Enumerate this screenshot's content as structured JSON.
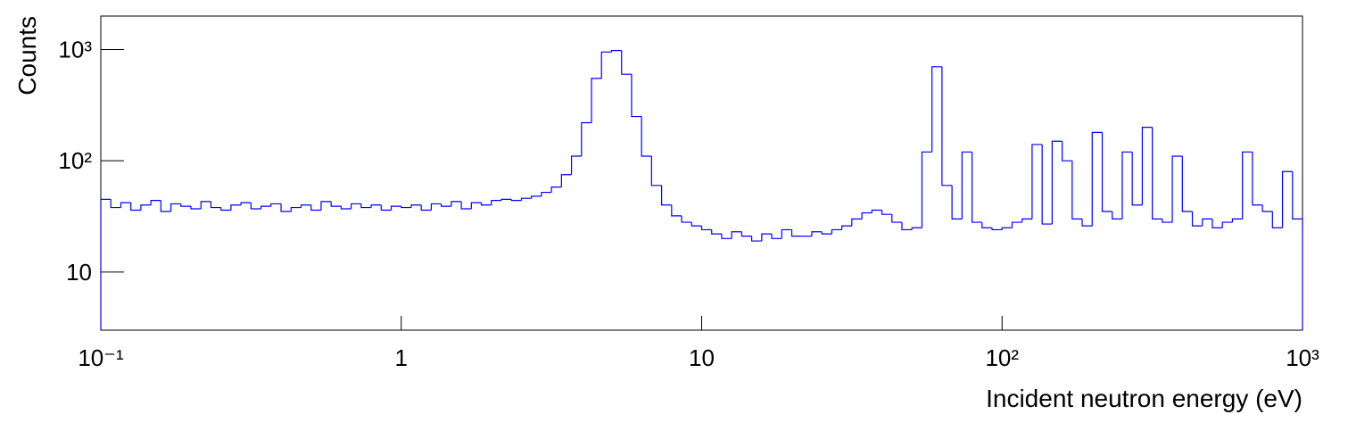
{
  "chart_data": {
    "type": "histogram",
    "x_label": "Incident neutron energy (eV)",
    "y_label": "Counts",
    "color": "#0000ff",
    "log_x": true,
    "log_y": true,
    "xlim": [
      0.1,
      1000
    ],
    "ylim": [
      3,
      2000
    ],
    "xticks": [
      {
        "value": 0.1,
        "label": "10⁻¹"
      },
      1,
      10,
      {
        "value": 100,
        "label": "10²"
      },
      {
        "value": 1000,
        "label": "10³"
      }
    ],
    "yticks": [
      10,
      {
        "value": 100,
        "label": "10²"
      },
      {
        "value": 1000,
        "label": "10³"
      }
    ],
    "bins": [
      0.1,
      0.10798,
      0.11659,
      0.12589,
      0.13594,
      0.14678,
      0.15849,
      0.17113,
      0.18478,
      0.19953,
      0.21544,
      0.23263,
      0.25119,
      0.27123,
      0.29286,
      0.31623,
      0.34146,
      0.36869,
      0.39811,
      0.42987,
      0.46416,
      0.50119,
      0.54117,
      0.58434,
      0.63096,
      0.68129,
      0.73564,
      0.79433,
      0.8577,
      0.92611,
      1.0,
      1.0798,
      1.1659,
      1.2589,
      1.3594,
      1.4678,
      1.5849,
      1.7113,
      1.8478,
      1.9953,
      2.1544,
      2.3263,
      2.5119,
      2.7123,
      2.9286,
      3.1623,
      3.4146,
      3.6869,
      3.9811,
      4.2987,
      4.6416,
      5.0119,
      5.4117,
      5.8434,
      6.3096,
      6.8129,
      7.3564,
      7.9433,
      8.577,
      9.2611,
      10.0,
      10.798,
      11.659,
      12.589,
      13.594,
      14.678,
      15.849,
      17.113,
      18.478,
      19.953,
      21.544,
      23.263,
      25.119,
      27.123,
      29.286,
      31.623,
      34.146,
      36.869,
      39.811,
      42.987,
      46.416,
      50.119,
      54.117,
      58.434,
      63.096,
      68.129,
      73.564,
      79.433,
      85.77,
      92.611,
      100.0,
      107.98,
      116.59,
      125.89,
      135.94,
      146.78,
      158.49,
      171.13,
      184.78,
      199.53,
      215.44,
      232.63,
      251.19,
      271.23,
      292.86,
      316.23,
      341.46,
      368.69,
      398.11,
      429.87,
      464.16,
      501.19,
      541.17,
      584.34,
      630.96,
      681.29,
      735.64,
      794.33,
      857.7,
      926.11,
      1000
    ],
    "counts": [
      45,
      38,
      42,
      36,
      40,
      44,
      35,
      41,
      39,
      37,
      43,
      38,
      36,
      40,
      42,
      37,
      39,
      41,
      35,
      38,
      40,
      36,
      43,
      39,
      37,
      41,
      38,
      40,
      36,
      39,
      38,
      40,
      36,
      41,
      39,
      43,
      37,
      42,
      40,
      44,
      45,
      44,
      46,
      48,
      52,
      58,
      75,
      110,
      220,
      550,
      950,
      980,
      600,
      250,
      110,
      60,
      40,
      32,
      28,
      26,
      24,
      22,
      20,
      23,
      21,
      19,
      22,
      20,
      24,
      21,
      21,
      23,
      22,
      24,
      26,
      30,
      34,
      36,
      33,
      28,
      24,
      25,
      120,
      700,
      60,
      30,
      120,
      28,
      25,
      24,
      25,
      28,
      30,
      140,
      27,
      150,
      100,
      30,
      26,
      180,
      35,
      30,
      120,
      40,
      200,
      30,
      28,
      110,
      35,
      26,
      30,
      25,
      28,
      30,
      120,
      40,
      35,
      25,
      80,
      30
    ]
  }
}
